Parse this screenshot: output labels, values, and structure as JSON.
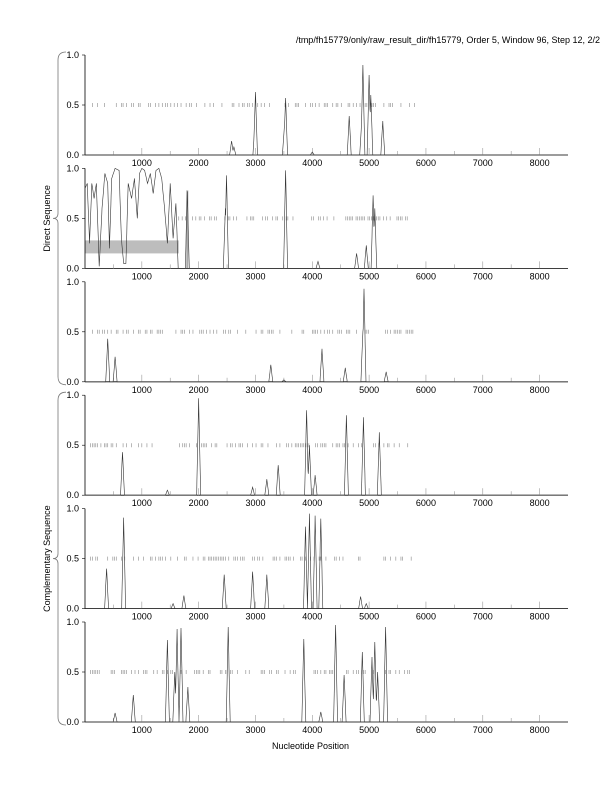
{
  "title": "/tmp/fh15779/only/raw_result_dir/fh15779, Order 5, Window 96, Step 12, 2/2",
  "chart_data": {
    "type": "line",
    "xlabel": "Nucleotide Position",
    "xlim": [
      0,
      8500
    ],
    "ylim": [
      0,
      1
    ],
    "xticks": [
      1000,
      2000,
      3000,
      4000,
      5000,
      6000,
      7000,
      8000
    ],
    "yticks": [
      "0.0",
      "0.5",
      "1.0"
    ],
    "groups": [
      {
        "label": "Direct Sequence",
        "panels": [
          0,
          1,
          2
        ]
      },
      {
        "label": "Complementary Sequence",
        "panels": [
          3,
          4,
          5
        ]
      }
    ],
    "panels": [
      {
        "name": "direct-frame-1",
        "marks_range": [
          100,
          5800
        ],
        "peaks": [
          [
            2580,
            0.14
          ],
          [
            2620,
            0.08
          ],
          [
            3000,
            0.63
          ],
          [
            2990,
            0.33
          ],
          [
            3530,
            0.57
          ],
          [
            3510,
            0.3
          ],
          [
            4000,
            0.03
          ],
          [
            4650,
            0.39
          ],
          [
            4870,
            0.35
          ],
          [
            4890,
            0.9
          ],
          [
            5000,
            0.8
          ],
          [
            5030,
            0.6
          ],
          [
            5240,
            0.34
          ]
        ]
      },
      {
        "name": "direct-frame-2",
        "marks_range": [
          1650,
          5750
        ],
        "highlight_box": {
          "x": [
            0,
            1650
          ],
          "y": [
            0.15,
            0.28
          ]
        },
        "gray_line_x": 1800,
        "profile": [
          [
            0,
            0.8
          ],
          [
            40,
            0.85
          ],
          [
            80,
            0.25
          ],
          [
            120,
            0.85
          ],
          [
            160,
            0.7
          ],
          [
            200,
            0.85
          ],
          [
            250,
            0.02
          ],
          [
            300,
            0.6
          ],
          [
            350,
            0.95
          ],
          [
            400,
            0.85
          ],
          [
            430,
            0.2
          ],
          [
            470,
            0.9
          ],
          [
            530,
            1.0
          ],
          [
            600,
            0.98
          ],
          [
            640,
            0.3
          ],
          [
            680,
            0.05
          ],
          [
            720,
            0.05
          ],
          [
            760,
            0.85
          ],
          [
            820,
            0.7
          ],
          [
            870,
            0.9
          ],
          [
            920,
            0.5
          ],
          [
            960,
            0.95
          ],
          [
            1000,
            1.0
          ],
          [
            1050,
            0.98
          ],
          [
            1100,
            0.85
          ],
          [
            1150,
            0.95
          ],
          [
            1200,
            0.75
          ],
          [
            1250,
            0.98
          ],
          [
            1300,
            1.0
          ],
          [
            1350,
            0.9
          ],
          [
            1400,
            0.6
          ],
          [
            1450,
            0.25
          ],
          [
            1500,
            0.85
          ],
          [
            1550,
            0.3
          ],
          [
            1600,
            0.65
          ],
          [
            1640,
            0.0
          ]
        ],
        "peaks": [
          [
            1800,
            0.77
          ],
          [
            2470,
            0.6
          ],
          [
            2490,
            0.93
          ],
          [
            3530,
            0.98
          ],
          [
            4100,
            0.07
          ],
          [
            4780,
            0.15
          ],
          [
            4950,
            0.23
          ],
          [
            5070,
            0.73
          ],
          [
            5100,
            0.6
          ]
        ]
      },
      {
        "name": "direct-frame-3",
        "marks_range": [
          100,
          5800
        ],
        "peaks": [
          [
            400,
            0.43
          ],
          [
            530,
            0.25
          ],
          [
            3270,
            0.17
          ],
          [
            3500,
            0.02
          ],
          [
            4170,
            0.33
          ],
          [
            4580,
            0.14
          ],
          [
            4890,
            0.5
          ],
          [
            4910,
            0.93
          ],
          [
            5300,
            0.1
          ]
        ]
      },
      {
        "name": "complementary-frame-1",
        "marks_range": [
          100,
          5750
        ],
        "peaks": [
          [
            660,
            0.43
          ],
          [
            1450,
            0.05
          ],
          [
            2000,
            0.97
          ],
          [
            2950,
            0.08
          ],
          [
            3200,
            0.16
          ],
          [
            3400,
            0.3
          ],
          [
            3900,
            0.85
          ],
          [
            3950,
            0.5
          ],
          [
            4050,
            0.2
          ],
          [
            4600,
            0.8
          ],
          [
            4900,
            0.78
          ],
          [
            5180,
            0.63
          ]
        ]
      },
      {
        "name": "complementary-frame-2",
        "marks_range": [
          100,
          5800
        ],
        "peaks": [
          [
            380,
            0.4
          ],
          [
            680,
            0.91
          ],
          [
            1550,
            0.05
          ],
          [
            1740,
            0.13
          ],
          [
            2450,
            0.34
          ],
          [
            2950,
            0.37
          ],
          [
            3200,
            0.34
          ],
          [
            3880,
            0.82
          ],
          [
            3950,
            0.95
          ],
          [
            4050,
            0.93
          ],
          [
            4150,
            0.9
          ],
          [
            4850,
            0.12
          ],
          [
            4950,
            0.05
          ]
        ]
      },
      {
        "name": "complementary-frame-3",
        "marks_range": [
          100,
          5750
        ],
        "peaks": [
          [
            530,
            0.09
          ],
          [
            850,
            0.27
          ],
          [
            1450,
            0.82
          ],
          [
            1580,
            0.5
          ],
          [
            1620,
            0.93
          ],
          [
            1690,
            0.94
          ],
          [
            1810,
            0.35
          ],
          [
            2520,
            0.95
          ],
          [
            3850,
            0.83
          ],
          [
            4150,
            0.1
          ],
          [
            4410,
            0.97
          ],
          [
            4560,
            0.47
          ],
          [
            4880,
            0.7
          ],
          [
            5050,
            0.65
          ],
          [
            5100,
            0.8
          ],
          [
            5150,
            0.5
          ],
          [
            5290,
            0.95
          ]
        ]
      }
    ]
  }
}
